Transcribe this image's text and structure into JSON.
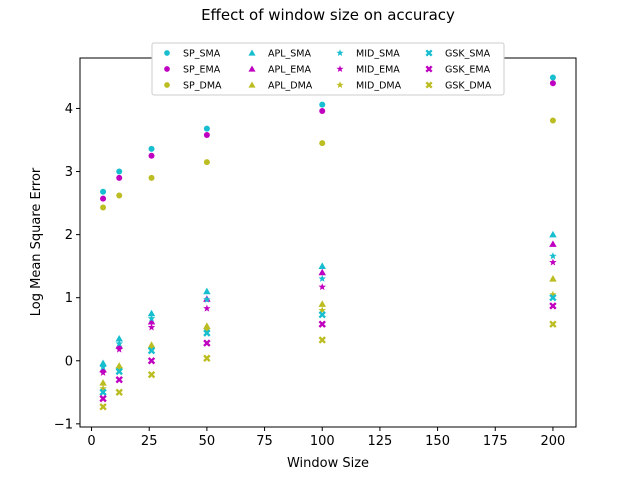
{
  "chart_data": {
    "type": "scatter",
    "title": "Effect of window size on accuracy",
    "xlabel": "Window Size",
    "ylabel": "Log Mean Square Error",
    "xlim": [
      -5,
      210
    ],
    "ylim": [
      -1.05,
      4.8
    ],
    "xticks": [
      "0",
      "25",
      "50",
      "75",
      "100",
      "125",
      "150",
      "175",
      "200"
    ],
    "yticks": [
      "−1",
      "0",
      "1",
      "2",
      "3",
      "4"
    ],
    "grid": false,
    "legend_position": "top-center",
    "x": [
      5,
      12,
      26,
      50,
      100,
      200
    ],
    "series": [
      {
        "name": "SP_SMA",
        "color": "#17becf",
        "marker": "circle",
        "values": [
          2.68,
          3.0,
          3.36,
          3.68,
          4.06,
          4.49
        ]
      },
      {
        "name": "SP_EMA",
        "color": "#c000c0",
        "marker": "circle",
        "values": [
          2.57,
          2.9,
          3.25,
          3.58,
          3.96,
          4.4
        ]
      },
      {
        "name": "SP_DMA",
        "color": "#bcbd22",
        "marker": "circle",
        "values": [
          2.43,
          2.62,
          2.9,
          3.15,
          3.45,
          3.81
        ]
      },
      {
        "name": "APL_SMA",
        "color": "#17becf",
        "marker": "triangle",
        "values": [
          -0.04,
          0.35,
          0.75,
          1.1,
          1.5,
          2.0
        ]
      },
      {
        "name": "APL_EMA",
        "color": "#c000c0",
        "marker": "triangle",
        "values": [
          -0.14,
          0.24,
          0.62,
          0.98,
          1.4,
          1.85
        ]
      },
      {
        "name": "APL_DMA",
        "color": "#bcbd22",
        "marker": "triangle",
        "values": [
          -0.35,
          -0.08,
          0.25,
          0.55,
          0.9,
          1.3
        ]
      },
      {
        "name": "MID_SMA",
        "color": "#17becf",
        "marker": "star",
        "values": [
          -0.1,
          0.27,
          0.67,
          0.97,
          1.3,
          1.66
        ]
      },
      {
        "name": "MID_EMA",
        "color": "#c000c0",
        "marker": "star",
        "values": [
          -0.19,
          0.18,
          0.53,
          0.83,
          1.17,
          1.56
        ]
      },
      {
        "name": "MID_DMA",
        "color": "#bcbd22",
        "marker": "star",
        "values": [
          -0.44,
          -0.12,
          0.2,
          0.49,
          0.8,
          1.05
        ]
      },
      {
        "name": "GSK_SMA",
        "color": "#17becf",
        "marker": "x",
        "values": [
          -0.5,
          -0.17,
          0.16,
          0.44,
          0.73,
          1.0
        ]
      },
      {
        "name": "GSK_EMA",
        "color": "#c000c0",
        "marker": "x",
        "values": [
          -0.6,
          -0.3,
          0.0,
          0.28,
          0.58,
          0.87
        ]
      },
      {
        "name": "GSK_DMA",
        "color": "#bcbd22",
        "marker": "x",
        "values": [
          -0.73,
          -0.5,
          -0.22,
          0.04,
          0.33,
          0.58
        ]
      }
    ]
  }
}
